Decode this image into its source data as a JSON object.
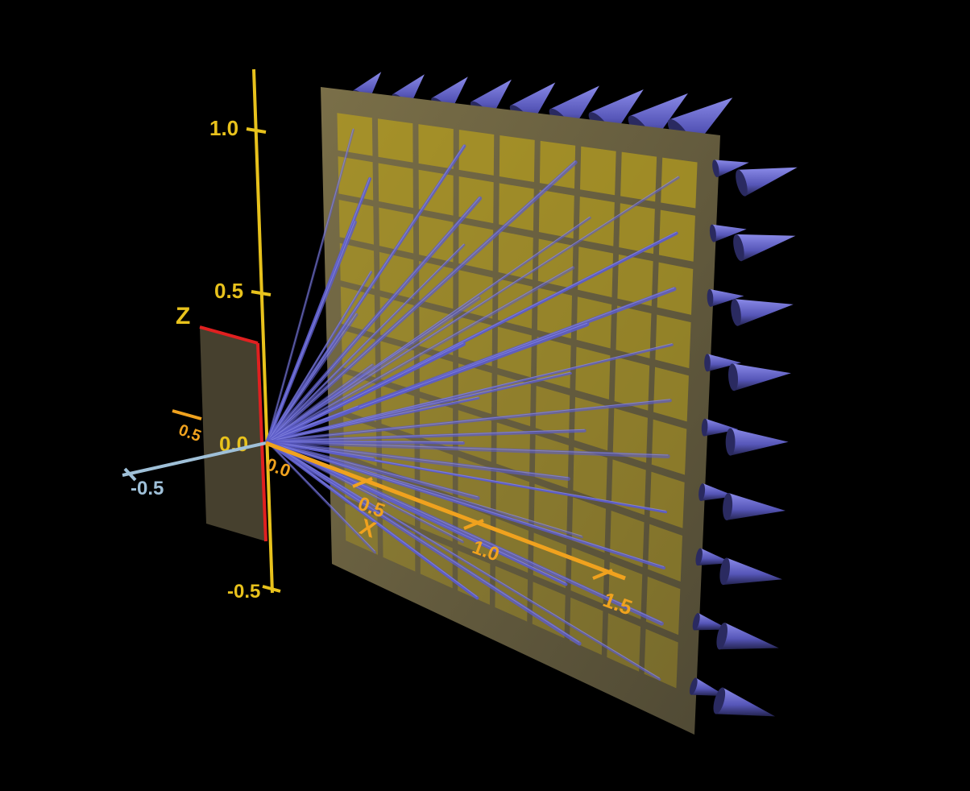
{
  "axes": {
    "z": {
      "name": "Z",
      "ticks": [
        "1.0",
        "0.5",
        "0.0",
        "-0.5"
      ],
      "color": "#e8c21c"
    },
    "x": {
      "name": "X",
      "ticks": [
        "0.0",
        "0.5",
        "1.0",
        "1.5"
      ],
      "color": "#f0a21e"
    },
    "y": {
      "ticks": [
        "-0.5",
        "0.5"
      ],
      "color": "#9fc0d8"
    }
  },
  "colors": {
    "background": "#000000",
    "screen_panel": "#6b6440",
    "grid_cell": "#b8a01c",
    "small_panel": "#4a4330",
    "small_panel_edge": "#e02020",
    "rays": "#5c5cc8",
    "cones": "#6e6ed8"
  },
  "scene": {
    "ray_count": 40,
    "grid": {
      "rows": 10,
      "cols": 9
    },
    "cone_columns": 2
  }
}
